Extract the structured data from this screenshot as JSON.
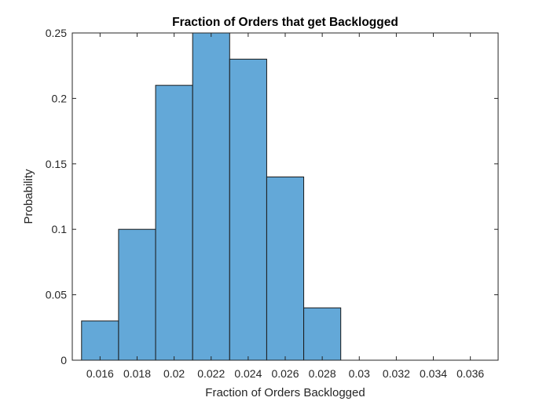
{
  "chart_data": {
    "type": "bar",
    "title": "Fraction of Orders that get Backlogged",
    "xlabel": "Fraction of Orders Backlogged",
    "ylabel": "Probability",
    "bin_edges": [
      0.015,
      0.017,
      0.019,
      0.021,
      0.023,
      0.025,
      0.027,
      0.029,
      0.031,
      0.033,
      0.035,
      0.037
    ],
    "bins": [
      {
        "start": 0.015,
        "end": 0.017,
        "value": 0.03
      },
      {
        "start": 0.017,
        "end": 0.019,
        "value": 0.1
      },
      {
        "start": 0.019,
        "end": 0.021,
        "value": 0.21
      },
      {
        "start": 0.021,
        "end": 0.023,
        "value": 0.25
      },
      {
        "start": 0.023,
        "end": 0.025,
        "value": 0.23
      },
      {
        "start": 0.025,
        "end": 0.027,
        "value": 0.14
      },
      {
        "start": 0.027,
        "end": 0.029,
        "value": 0.04
      }
    ],
    "xlim": [
      0.0145,
      0.0375
    ],
    "ylim": [
      0,
      0.25
    ],
    "xticks": [
      0.016,
      0.018,
      0.02,
      0.022,
      0.024,
      0.026,
      0.028,
      0.03,
      0.032,
      0.034,
      0.036
    ],
    "xtick_labels": [
      "0.016",
      "0.018",
      "0.02",
      "0.022",
      "0.024",
      "0.026",
      "0.028",
      "0.03",
      "0.032",
      "0.034",
      "0.036"
    ],
    "yticks": [
      0,
      0.05,
      0.1,
      0.15,
      0.2,
      0.25
    ],
    "ytick_labels": [
      "0",
      "0.05",
      "0.1",
      "0.15",
      "0.2",
      "0.25"
    ],
    "grid": false,
    "legend": "none",
    "bar_color": "#63a8d8",
    "edge_color": "#1a1a1a"
  }
}
